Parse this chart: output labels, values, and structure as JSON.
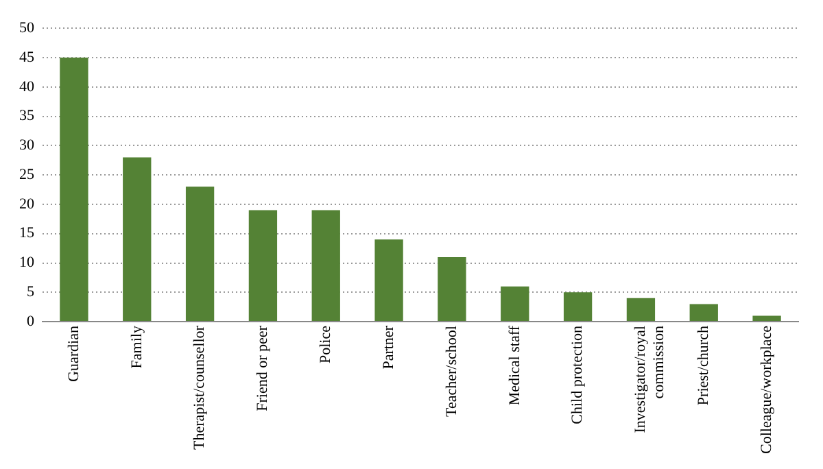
{
  "chart_data": {
    "type": "bar",
    "categories": [
      "Guardian",
      "Family",
      "Therapist/counsellor",
      "Friend or peer",
      "Police",
      "Partner",
      "Teacher/school",
      "Medical staff",
      "Child protection",
      "Investigator/royal commission",
      "Priest/church",
      "Colleague/workplace"
    ],
    "values": [
      45,
      28,
      23,
      19,
      19,
      14,
      11,
      6,
      5,
      4,
      3,
      1
    ],
    "color": "#548235",
    "ylim": [
      0,
      50
    ],
    "yticks": [
      0,
      5,
      10,
      15,
      20,
      25,
      30,
      35,
      40,
      45,
      50
    ],
    "grid": "y",
    "legend": false
  }
}
